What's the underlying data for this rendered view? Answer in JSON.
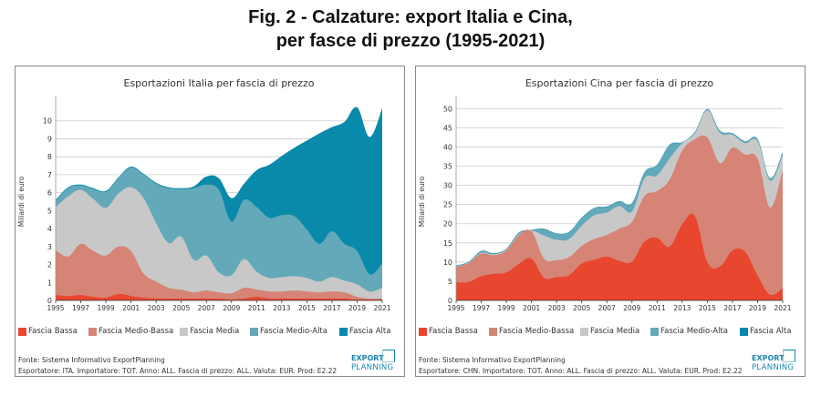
{
  "title_line1": "Fig. 2 - Calzature: export Italia e Cina,",
  "title_line2": "per fasce di prezzo (1995-2021)",
  "legend": [
    {
      "label": "Fascia Bassa",
      "color": "#e8462e"
    },
    {
      "label": "Fascia Medio-Bassa",
      "color": "#d68475"
    },
    {
      "label": "Fascia Media",
      "color": "#c8c8c8"
    },
    {
      "label": "Fascia Medio-Alta",
      "color": "#63a9b9"
    },
    {
      "label": "Fascia Alta",
      "color": "#0a8aaa"
    }
  ],
  "source": "Fonte: Sistema Informativo ExportPlanning",
  "logo": {
    "line1": "EXPORT",
    "line2": "PLANNING"
  },
  "chart_data": [
    {
      "type": "area",
      "stacked": true,
      "title": "Esportazioni Italia per fascia di prezzo",
      "ylabel": "Miliardi di euro",
      "xlabel": "",
      "ylim": [
        0,
        11
      ],
      "yticks": [
        0,
        1,
        2,
        3,
        4,
        5,
        6,
        7,
        8,
        9,
        10
      ],
      "xticks": [
        "1995",
        "1997",
        "1999",
        "2001",
        "2003",
        "2005",
        "2007",
        "2009",
        "2011",
        "2013",
        "2015",
        "2017",
        "2019",
        "2021"
      ],
      "x": [
        1995,
        1996,
        1997,
        1998,
        1999,
        2000,
        2001,
        2002,
        2003,
        2004,
        2005,
        2006,
        2007,
        2008,
        2009,
        2010,
        2011,
        2012,
        2013,
        2014,
        2015,
        2016,
        2017,
        2018,
        2019,
        2020,
        2021
      ],
      "series": [
        {
          "name": "Fascia Bassa",
          "values": [
            0.3,
            0.25,
            0.3,
            0.2,
            0.15,
            0.35,
            0.25,
            0.15,
            0.1,
            0.1,
            0.1,
            0.1,
            0.1,
            0.1,
            0.05,
            0.1,
            0.2,
            0.1,
            0.1,
            0.1,
            0.1,
            0.1,
            0.1,
            0.1,
            0.05,
            0.05,
            0.05
          ]
        },
        {
          "name": "Fascia Medio-Bassa",
          "values": [
            2.5,
            2.2,
            2.85,
            2.55,
            2.35,
            2.65,
            2.5,
            1.35,
            0.95,
            0.6,
            0.5,
            0.35,
            0.45,
            0.35,
            0.35,
            0.6,
            0.4,
            0.4,
            0.4,
            0.45,
            0.4,
            0.35,
            0.4,
            0.35,
            0.15,
            0.05,
            0.05
          ]
        },
        {
          "name": "Fascia Media",
          "values": [
            2.4,
            3.35,
            3.0,
            2.9,
            2.65,
            2.95,
            3.55,
            4.2,
            3.25,
            2.5,
            2.95,
            1.8,
            1.95,
            1.1,
            1.0,
            1.6,
            1.0,
            0.75,
            0.8,
            0.8,
            0.75,
            0.6,
            0.8,
            0.65,
            0.7,
            0.4,
            0.6
          ]
        },
        {
          "name": "Fascia Medio-Alta",
          "values": [
            0.35,
            0.45,
            0.25,
            0.55,
            0.9,
            0.85,
            1.1,
            1.3,
            2.2,
            3.05,
            2.65,
            4.0,
            3.95,
            4.6,
            3.0,
            3.3,
            3.6,
            3.35,
            3.45,
            3.35,
            2.7,
            2.1,
            2.55,
            2.05,
            1.85,
            0.95,
            1.35
          ]
        },
        {
          "name": "Fascia Alta",
          "values": [
            0.05,
            0.05,
            0.05,
            0.05,
            0.05,
            0.05,
            0.05,
            0.05,
            0.05,
            0.05,
            0.05,
            0.1,
            0.45,
            0.65,
            1.3,
            0.9,
            2.05,
            2.95,
            3.3,
            3.8,
            4.95,
            6.15,
            5.8,
            6.8,
            8.0,
            7.65,
            8.65
          ]
        }
      ],
      "footer": "Esportatore: ITA. Importatore: TOT. Anno: ALL. Fascia di prezzo: ALL. Valuta: EUR. Prod: E2.22",
      "grid": true,
      "legend_position": "bottom"
    },
    {
      "type": "area",
      "stacked": true,
      "title": "Esportazioni Cina per fascia di prezzo",
      "ylabel": "Miliardi di euro",
      "xlabel": "",
      "ylim": [
        0,
        51.5
      ],
      "yticks": [
        0,
        5,
        10,
        15,
        20,
        25,
        30,
        35,
        40,
        45,
        50
      ],
      "xticks": [
        "1995",
        "1997",
        "1999",
        "2001",
        "2003",
        "2005",
        "2007",
        "2009",
        "2011",
        "2013",
        "2015",
        "2017",
        "2019",
        "2021"
      ],
      "x": [
        1995,
        1996,
        1997,
        1998,
        1999,
        2000,
        2001,
        2002,
        2003,
        2004,
        2005,
        2006,
        2007,
        2008,
        2009,
        2010,
        2011,
        2012,
        2013,
        2014,
        2015,
        2016,
        2017,
        2018,
        2019,
        2020,
        2021
      ],
      "series": [
        {
          "name": "Fascia Bassa",
          "values": [
            4.7,
            4.8,
            6.3,
            6.9,
            7.3,
            9.5,
            10.9,
            5.9,
            6.1,
            6.6,
            9.6,
            10.6,
            11.4,
            10.3,
            10.1,
            15.3,
            16.3,
            14.0,
            19.8,
            22.0,
            10.0,
            8.8,
            13.0,
            12.7,
            6.5,
            1.5,
            3.2
          ]
        },
        {
          "name": "Fascia Medio-Bassa",
          "values": [
            4.0,
            5.0,
            5.9,
            4.9,
            5.7,
            7.5,
            7.1,
            5.0,
            4.4,
            4.7,
            4.6,
            5.4,
            5.7,
            8.4,
            10.4,
            11.9,
            12.2,
            17.5,
            19.2,
            20.0,
            32.5,
            27.0,
            26.8,
            25.3,
            30.5,
            22.7,
            30.8
          ]
        },
        {
          "name": "Fascia Media",
          "values": [
            0.1,
            0.1,
            0.2,
            0.2,
            0.2,
            0.2,
            0.2,
            6.0,
            5.3,
            4.7,
            5.3,
            6.2,
            5.8,
            5.9,
            2.7,
            4.6,
            4.1,
            5.5,
            2.0,
            1.5,
            7.0,
            7.9,
            3.4,
            3.0,
            4.5,
            7.0,
            3.8
          ]
        },
        {
          "name": "Fascia Medio-Alta",
          "values": [
            0.2,
            0.1,
            0.4,
            0.2,
            0.2,
            0.4,
            0.1,
            1.7,
            1.6,
            1.8,
            2.0,
            1.8,
            1.5,
            1.2,
            2.1,
            1.5,
            2.7,
            3.5,
            0.2,
            0.3,
            0.3,
            0.5,
            0.3,
            0.4,
            0.5,
            0.6,
            0.8
          ]
        },
        {
          "name": "Fascia Alta",
          "values": [
            0.1,
            0.1,
            0.1,
            0.1,
            0.1,
            0.1,
            0.1,
            0.1,
            0.1,
            0.1,
            0.1,
            0.1,
            0.1,
            0.1,
            0.1,
            0.1,
            0.1,
            0.1,
            0.1,
            0.1,
            0.1,
            0.1,
            0.1,
            0.1,
            0.1,
            0.1,
            0.1
          ]
        }
      ],
      "footer": "Esportatore: CHN. Importatore: TOT. Anno: ALL. Fascia di prezzo: ALL. Valuta: EUR. Prod: E2.22",
      "grid": true,
      "legend_position": "bottom"
    }
  ]
}
